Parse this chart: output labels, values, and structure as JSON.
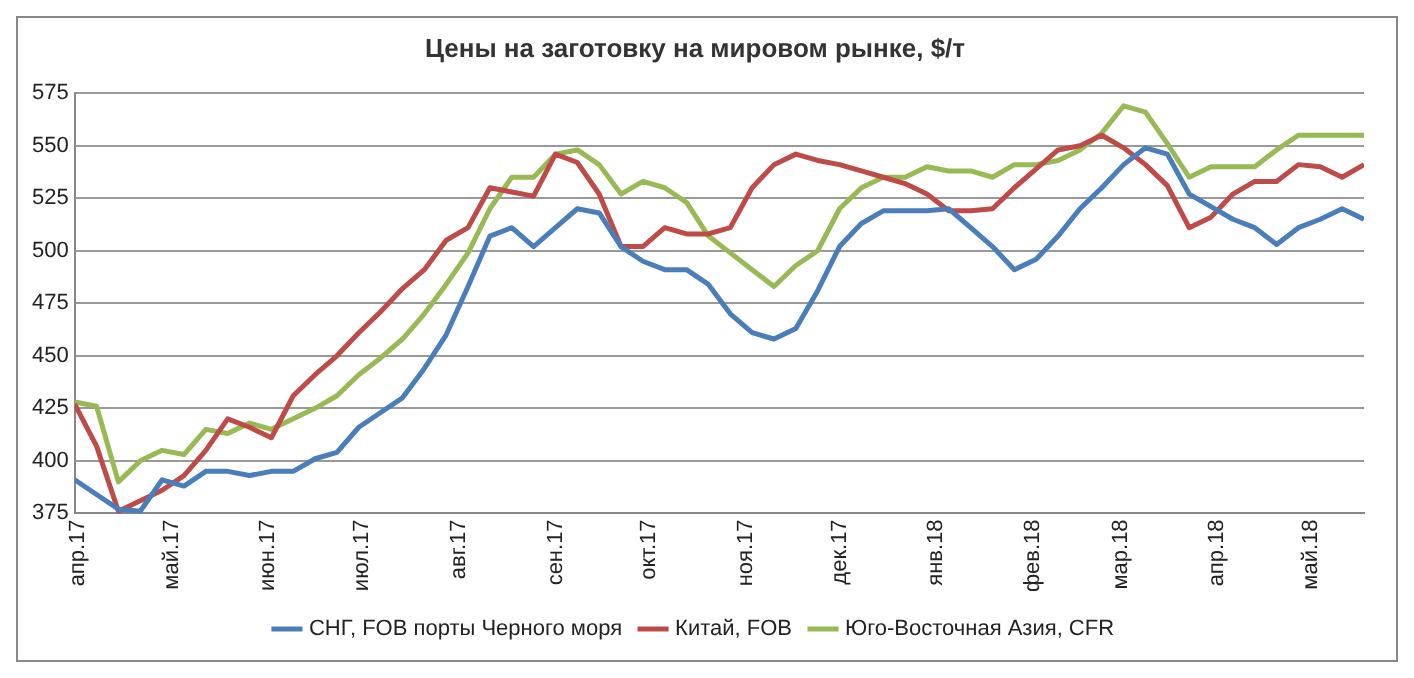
{
  "chart_data": {
    "type": "line",
    "title": "Цены на заготовку на мировом рынке, $/т",
    "x": [
      "2017-03-31",
      "2017-04-07",
      "2017-04-14",
      "2017-04-21",
      "2017-04-28",
      "2017-05-05",
      "2017-05-12",
      "2017-05-19",
      "2017-05-26",
      "2017-06-02",
      "2017-06-09",
      "2017-06-16",
      "2017-06-23",
      "2017-06-30",
      "2017-07-07",
      "2017-07-14",
      "2017-07-21",
      "2017-07-28",
      "2017-08-04",
      "2017-08-11",
      "2017-08-18",
      "2017-08-25",
      "2017-09-01",
      "2017-09-08",
      "2017-09-15",
      "2017-09-22",
      "2017-09-29",
      "2017-10-06",
      "2017-10-13",
      "2017-10-20",
      "2017-10-27",
      "2017-11-03",
      "2017-11-10",
      "2017-11-17",
      "2017-11-24",
      "2017-12-01",
      "2017-12-08",
      "2017-12-15",
      "2017-12-22",
      "2017-12-29",
      "2018-01-05",
      "2018-01-12",
      "2018-01-19",
      "2018-01-26",
      "2018-02-02",
      "2018-02-09",
      "2018-02-16",
      "2018-02-23",
      "2018-03-02",
      "2018-03-09",
      "2018-03-16",
      "2018-03-23",
      "2018-03-30",
      "2018-04-06",
      "2018-04-13",
      "2018-04-20",
      "2018-04-27",
      "2018-05-04",
      "2018-05-11",
      "2018-05-18"
    ],
    "series": [
      {
        "name": "СНГ, FOB порты Черного моря",
        "color": "#4a7ebb",
        "values": [
          391,
          384,
          377,
          376,
          391,
          388,
          395,
          395,
          393,
          395,
          395,
          401,
          404,
          416,
          423,
          430,
          444,
          460,
          483,
          507,
          511,
          502,
          511,
          520,
          518,
          502,
          495,
          491,
          491,
          484,
          470,
          461,
          458,
          463,
          481,
          502,
          513,
          519,
          519,
          519,
          520,
          511,
          502,
          491,
          496,
          507,
          520,
          530,
          541,
          549,
          546,
          527,
          521,
          515,
          511,
          503,
          511,
          515,
          520,
          515
        ]
      },
      {
        "name": "Китай, FOB",
        "color": "#be4b48",
        "values": [
          427,
          407,
          376,
          381,
          386,
          393,
          405,
          420,
          416,
          411,
          431,
          441,
          450,
          461,
          471,
          482,
          491,
          505,
          511,
          530,
          528,
          526,
          546,
          542,
          527,
          502,
          502,
          511,
          508,
          508,
          511,
          530,
          541,
          546,
          543,
          541,
          538,
          535,
          532,
          527,
          519,
          519,
          520,
          530,
          539,
          548,
          550,
          555,
          549,
          541,
          531,
          511,
          516,
          527,
          533,
          533,
          541,
          540,
          535,
          541
        ]
      },
      {
        "name": "Юго-Восточная Азия, CFR",
        "color": "#98b954",
        "values": [
          428,
          426,
          390,
          400,
          405,
          403,
          415,
          413,
          418,
          415,
          420,
          425,
          431,
          441,
          449,
          458,
          470,
          484,
          499,
          520,
          535,
          535,
          546,
          548,
          541,
          527,
          533,
          530,
          523,
          507,
          499,
          491,
          483,
          493,
          500,
          520,
          530,
          535,
          535,
          540,
          538,
          538,
          535,
          541,
          541,
          543,
          548,
          556,
          569,
          566,
          551,
          535,
          540,
          540,
          540,
          548,
          555,
          555,
          555,
          555
        ]
      }
    ],
    "xlim": [
      "2017-03-31",
      "2018-05-18"
    ],
    "xticks": [
      {
        "value": "2017-04-01",
        "label": "апр.17"
      },
      {
        "value": "2017-05-01",
        "label": "май.17"
      },
      {
        "value": "2017-06-01",
        "label": "июн.17"
      },
      {
        "value": "2017-07-01",
        "label": "июл.17"
      },
      {
        "value": "2017-08-01",
        "label": "авг.17"
      },
      {
        "value": "2017-09-01",
        "label": "сен.17"
      },
      {
        "value": "2017-10-01",
        "label": "окт.17"
      },
      {
        "value": "2017-11-01",
        "label": "ноя.17"
      },
      {
        "value": "2017-12-01",
        "label": "дек.17"
      },
      {
        "value": "2018-01-01",
        "label": "янв.18"
      },
      {
        "value": "2018-02-01",
        "label": "фев.18"
      },
      {
        "value": "2018-03-01",
        "label": "мар.18"
      },
      {
        "value": "2018-04-01",
        "label": "апр.18"
      },
      {
        "value": "2018-05-01",
        "label": "май.18"
      }
    ],
    "ylim": [
      375,
      575
    ],
    "yticks": [
      375,
      400,
      425,
      450,
      475,
      500,
      525,
      550,
      575
    ],
    "grid": "y",
    "legend": "bottom",
    "marker": "none",
    "line_style": "solid"
  }
}
